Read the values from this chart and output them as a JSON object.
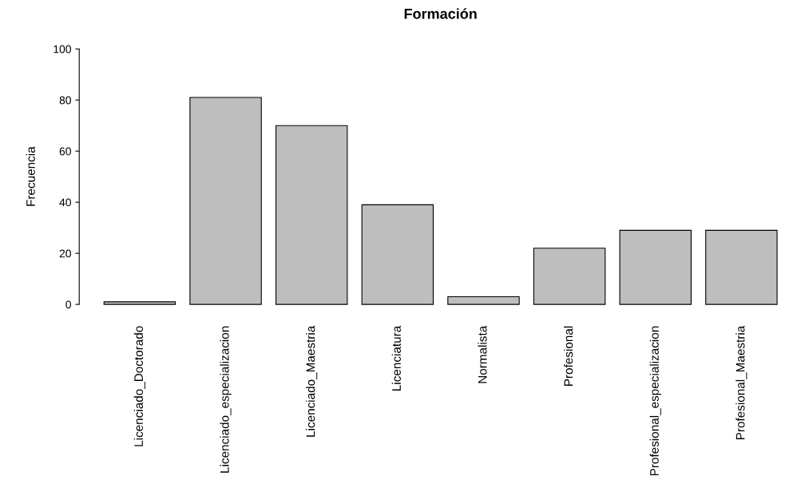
{
  "chart_data": {
    "type": "bar",
    "title": "Formación",
    "ylabel": "Frecuencia",
    "categories": [
      "Licenciado_Doctorado",
      "Licenciado_especializacion",
      "Licenciado_Maestria",
      "Licenciatura",
      "Normalista",
      "Profesional",
      "Profesional_especializacion",
      "Profesional_Maestria"
    ],
    "values": [
      1,
      81,
      70,
      39,
      3,
      22,
      29,
      29
    ],
    "color": "#bebebe",
    "ylim": [
      0,
      100
    ],
    "yticks": [
      0,
      20,
      40,
      60,
      80,
      100
    ],
    "grid": false,
    "legend": false
  }
}
